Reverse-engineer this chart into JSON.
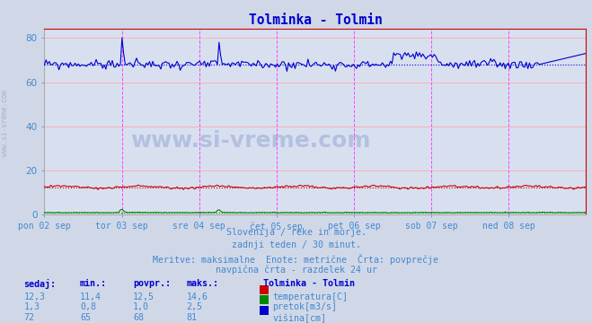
{
  "title": "Tolminka - Tolmin",
  "title_color": "#0000cc",
  "bg_color": "#d0d8e8",
  "plot_bg_color": "#d8e0f0",
  "grid_color": "#ffaaaa",
  "tick_color": "#4488cc",
  "text_color": "#4488cc",
  "ylim": [
    0,
    84
  ],
  "yticks": [
    0,
    20,
    40,
    60,
    80
  ],
  "xlabel_ticks": [
    "pon 02 sep",
    "tor 03 sep",
    "sre 04 sep",
    "čet 05 sep",
    "pet 06 sep",
    "sob 07 sep",
    "ned 08 sep"
  ],
  "n_points": 336,
  "temp_avg": 12.5,
  "pretok_avg": 1.0,
  "visina_avg": 68,
  "subtitle1": "Slovenija / reke in morje.",
  "subtitle2": "zadnji teden / 30 minut.",
  "subtitle3": "Meritve: maksimalne  Enote: metrične  Črta: povprečje",
  "subtitle4": "navpična črta - razdelek 24 ur",
  "legend_title": "Tolminka - Tolmin",
  "col_headers": [
    "sedaj:",
    "min.:",
    "povpr.:",
    "maks.:"
  ],
  "col_vals_temp": [
    "12,3",
    "11,4",
    "12,5",
    "14,6"
  ],
  "col_vals_pretok": [
    "1,3",
    "0,8",
    "1,0",
    "2,5"
  ],
  "col_vals_visina": [
    "72",
    "65",
    "68",
    "81"
  ],
  "temp_color": "#cc0000",
  "pretok_color": "#008800",
  "visina_color": "#0000cc",
  "vline_color": "#ff44ff",
  "watermark": "www.si-vreme.com",
  "side_text": "www.si-vreme.com"
}
